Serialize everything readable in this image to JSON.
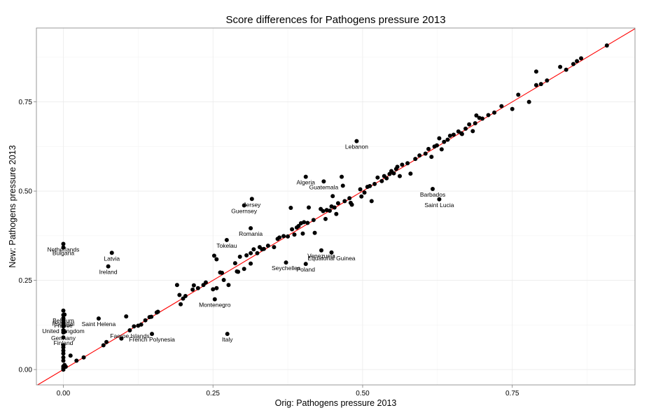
{
  "chart_data": {
    "type": "scatter",
    "title": "Score differences for Pathogens pressure 2013",
    "xlabel": "Orig: Pathogens pressure 2013",
    "ylabel": "New: Pathogens pressure 2013",
    "xlim": [
      -0.045,
      0.955
    ],
    "ylim": [
      -0.043,
      0.957
    ],
    "x_ticks": [
      0.0,
      0.25,
      0.5,
      0.75
    ],
    "x_tick_labels": [
      "0.00",
      "0.25",
      "0.50",
      "0.75"
    ],
    "y_ticks": [
      0.0,
      0.25,
      0.5,
      0.75
    ],
    "y_tick_labels": [
      "0.00",
      "0.25",
      "0.50",
      "0.75"
    ],
    "grid": true,
    "reference_line": {
      "slope": 1,
      "intercept": 0,
      "color": "#ff0000"
    },
    "colors": {
      "points": "#000000",
      "line": "#ff0000",
      "grid": "#ebebeb",
      "border": "#7f7f7f"
    },
    "labeled_points": [
      {
        "label": "Lebanon",
        "x": 0.49,
        "y": 0.64
      },
      {
        "label": "Algeria",
        "x": 0.405,
        "y": 0.54
      },
      {
        "label": "Guatemala",
        "x": 0.435,
        "y": 0.527
      },
      {
        "label": "Barbados",
        "x": 0.617,
        "y": 0.506
      },
      {
        "label": "Saint Lucia",
        "x": 0.628,
        "y": 0.477
      },
      {
        "label": "Jersey",
        "x": 0.315,
        "y": 0.478
      },
      {
        "label": "Guernsey",
        "x": 0.302,
        "y": 0.46
      },
      {
        "label": "Romania",
        "x": 0.313,
        "y": 0.396
      },
      {
        "label": "Tokelau",
        "x": 0.273,
        "y": 0.363
      },
      {
        "label": "Netherlands",
        "x": 0.0,
        "y": 0.352
      },
      {
        "label": "Bulgaria",
        "x": 0.0,
        "y": 0.342
      },
      {
        "label": "Latvia",
        "x": 0.081,
        "y": 0.327
      },
      {
        "label": "Ireland",
        "x": 0.075,
        "y": 0.289
      },
      {
        "label": "Venezuela",
        "x": 0.431,
        "y": 0.334
      },
      {
        "label": "Equatorial Guinea",
        "x": 0.448,
        "y": 0.328
      },
      {
        "label": "Seychelles",
        "x": 0.372,
        "y": 0.3
      },
      {
        "label": "Poland",
        "x": 0.405,
        "y": 0.296
      },
      {
        "label": "Montenegro",
        "x": 0.253,
        "y": 0.197
      },
      {
        "label": "Italy",
        "x": 0.274,
        "y": 0.1
      },
      {
        "label": "French Polynesia",
        "x": 0.148,
        "y": 0.1
      },
      {
        "label": "Faeroe Islands",
        "x": 0.111,
        "y": 0.11
      },
      {
        "label": "Saint Helena",
        "x": 0.059,
        "y": 0.143
      },
      {
        "label": "Belgium",
        "x": 0.0,
        "y": 0.153
      },
      {
        "label": "Portugal",
        "x": 0.0,
        "y": 0.144
      },
      {
        "label": "France",
        "x": 0.0,
        "y": 0.139
      },
      {
        "label": "United Kingdom",
        "x": 0.0,
        "y": 0.124
      },
      {
        "label": "Germany",
        "x": 0.0,
        "y": 0.104
      },
      {
        "label": "Finland",
        "x": 0.0,
        "y": 0.09
      }
    ],
    "points": [
      [
        0.0,
        0.0
      ],
      [
        0.0,
        0.004
      ],
      [
        0.0,
        0.009
      ],
      [
        0.004,
        0.008
      ],
      [
        0.002,
        0.013
      ],
      [
        0.0,
        0.025
      ],
      [
        0.0,
        0.034
      ],
      [
        0.0,
        0.045
      ],
      [
        0.0,
        0.053
      ],
      [
        0.0,
        0.062
      ],
      [
        0.0,
        0.068
      ],
      [
        0.0,
        0.165
      ],
      [
        0.0,
        0.121
      ],
      [
        0.0,
        0.11
      ],
      [
        0.002,
        0.106
      ],
      [
        0.0,
        0.131
      ],
      [
        0.002,
        0.154
      ],
      [
        0.012,
        0.039
      ],
      [
        0.022,
        0.025
      ],
      [
        0.034,
        0.034
      ],
      [
        0.067,
        0.068
      ],
      [
        0.072,
        0.077
      ],
      [
        0.097,
        0.087
      ],
      [
        0.105,
        0.149
      ],
      [
        0.118,
        0.121
      ],
      [
        0.125,
        0.123
      ],
      [
        0.13,
        0.126
      ],
      [
        0.137,
        0.138
      ],
      [
        0.144,
        0.147
      ],
      [
        0.147,
        0.148
      ],
      [
        0.156,
        0.16
      ],
      [
        0.158,
        0.162
      ],
      [
        0.19,
        0.237
      ],
      [
        0.194,
        0.209
      ],
      [
        0.196,
        0.183
      ],
      [
        0.2,
        0.199
      ],
      [
        0.204,
        0.206
      ],
      [
        0.216,
        0.224
      ],
      [
        0.218,
        0.236
      ],
      [
        0.225,
        0.228
      ],
      [
        0.234,
        0.237
      ],
      [
        0.238,
        0.244
      ],
      [
        0.25,
        0.225
      ],
      [
        0.256,
        0.228
      ],
      [
        0.252,
        0.319
      ],
      [
        0.256,
        0.309
      ],
      [
        0.262,
        0.272
      ],
      [
        0.265,
        0.271
      ],
      [
        0.268,
        0.251
      ],
      [
        0.276,
        0.237
      ],
      [
        0.287,
        0.298
      ],
      [
        0.29,
        0.275
      ],
      [
        0.292,
        0.274
      ],
      [
        0.295,
        0.316
      ],
      [
        0.302,
        0.282
      ],
      [
        0.306,
        0.32
      ],
      [
        0.313,
        0.326
      ],
      [
        0.313,
        0.297
      ],
      [
        0.318,
        0.337
      ],
      [
        0.324,
        0.326
      ],
      [
        0.328,
        0.343
      ],
      [
        0.332,
        0.337
      ],
      [
        0.335,
        0.338
      ],
      [
        0.342,
        0.347
      ],
      [
        0.352,
        0.343
      ],
      [
        0.358,
        0.366
      ],
      [
        0.361,
        0.37
      ],
      [
        0.368,
        0.374
      ],
      [
        0.375,
        0.373
      ],
      [
        0.38,
        0.453
      ],
      [
        0.382,
        0.393
      ],
      [
        0.386,
        0.378
      ],
      [
        0.39,
        0.398
      ],
      [
        0.393,
        0.402
      ],
      [
        0.397,
        0.41
      ],
      [
        0.4,
        0.381
      ],
      [
        0.402,
        0.413
      ],
      [
        0.408,
        0.411
      ],
      [
        0.41,
        0.454
      ],
      [
        0.418,
        0.419
      ],
      [
        0.42,
        0.383
      ],
      [
        0.43,
        0.45
      ],
      [
        0.434,
        0.444
      ],
      [
        0.438,
        0.422
      ],
      [
        0.44,
        0.447
      ],
      [
        0.445,
        0.445
      ],
      [
        0.448,
        0.457
      ],
      [
        0.45,
        0.486
      ],
      [
        0.453,
        0.454
      ],
      [
        0.456,
        0.436
      ],
      [
        0.459,
        0.466
      ],
      [
        0.465,
        0.54
      ],
      [
        0.467,
        0.515
      ],
      [
        0.47,
        0.472
      ],
      [
        0.478,
        0.48
      ],
      [
        0.48,
        0.467
      ],
      [
        0.482,
        0.462
      ],
      [
        0.496,
        0.505
      ],
      [
        0.498,
        0.485
      ],
      [
        0.503,
        0.496
      ],
      [
        0.508,
        0.512
      ],
      [
        0.512,
        0.514
      ],
      [
        0.515,
        0.472
      ],
      [
        0.52,
        0.52
      ],
      [
        0.525,
        0.538
      ],
      [
        0.532,
        0.528
      ],
      [
        0.536,
        0.542
      ],
      [
        0.54,
        0.536
      ],
      [
        0.545,
        0.548
      ],
      [
        0.548,
        0.556
      ],
      [
        0.552,
        0.55
      ],
      [
        0.556,
        0.562
      ],
      [
        0.558,
        0.568
      ],
      [
        0.562,
        0.542
      ],
      [
        0.566,
        0.574
      ],
      [
        0.575,
        0.578
      ],
      [
        0.58,
        0.549
      ],
      [
        0.588,
        0.59
      ],
      [
        0.595,
        0.6
      ],
      [
        0.605,
        0.605
      ],
      [
        0.61,
        0.618
      ],
      [
        0.615,
        0.596
      ],
      [
        0.62,
        0.625
      ],
      [
        0.624,
        0.628
      ],
      [
        0.628,
        0.648
      ],
      [
        0.632,
        0.617
      ],
      [
        0.636,
        0.638
      ],
      [
        0.642,
        0.644
      ],
      [
        0.646,
        0.655
      ],
      [
        0.652,
        0.658
      ],
      [
        0.66,
        0.667
      ],
      [
        0.666,
        0.66
      ],
      [
        0.672,
        0.675
      ],
      [
        0.678,
        0.687
      ],
      [
        0.684,
        0.668
      ],
      [
        0.69,
        0.712
      ],
      [
        0.695,
        0.705
      ],
      [
        0.7,
        0.703
      ],
      [
        0.71,
        0.713
      ],
      [
        0.72,
        0.72
      ],
      [
        0.732,
        0.738
      ],
      [
        0.75,
        0.73
      ],
      [
        0.76,
        0.77
      ],
      [
        0.778,
        0.75
      ],
      [
        0.79,
        0.797
      ],
      [
        0.798,
        0.8
      ],
      [
        0.808,
        0.81
      ],
      [
        0.79,
        0.835
      ],
      [
        0.83,
        0.848
      ],
      [
        0.84,
        0.84
      ],
      [
        0.852,
        0.856
      ],
      [
        0.858,
        0.864
      ],
      [
        0.865,
        0.872
      ],
      [
        0.908,
        0.908
      ],
      [
        0.688,
        0.69
      ],
      [
        0.665,
        0.662
      ]
    ]
  }
}
